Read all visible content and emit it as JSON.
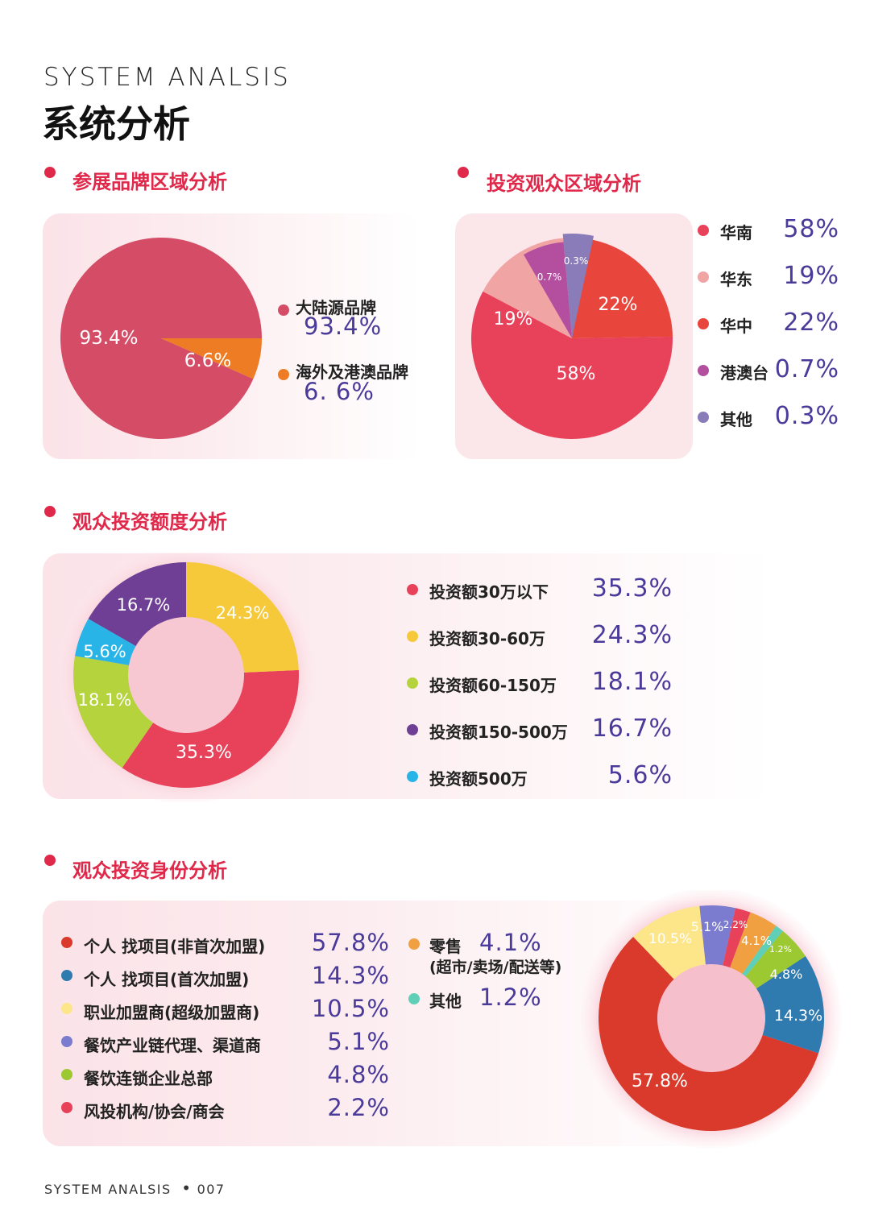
{
  "header": {
    "eng_title": "SYSTEM ANALSIS",
    "cn_title": "系统分析"
  },
  "footer": {
    "text": "SYSTEM ANALSIS",
    "page": "007"
  },
  "sections": {
    "brand": {
      "title": "参展品牌区域分析"
    },
    "region": {
      "title": "投资观众区域分析"
    },
    "amount": {
      "title": "观众投资额度分析"
    },
    "identity": {
      "title": "观众投资身份分析"
    }
  },
  "chart_data": [
    {
      "id": "brand",
      "type": "pie",
      "title": "参展品牌区域分析",
      "categories": [
        "大陆源品牌",
        "海外及港澳品牌"
      ],
      "values": [
        93.4,
        6.6
      ],
      "slice_labels": [
        "93.4%",
        "6.6%"
      ],
      "legend_values": [
        "93.4%",
        "6. 6%"
      ],
      "colors": [
        "#d44c66",
        "#ee7c24"
      ]
    },
    {
      "id": "region",
      "type": "pie",
      "title": "投资观众区域分析",
      "categories": [
        "华南",
        "华东",
        "华中",
        "港澳台",
        "其他"
      ],
      "values": [
        58,
        19,
        22,
        0.7,
        0.3
      ],
      "slice_labels": [
        "58%",
        "19%",
        "22%",
        "0.7%",
        "0.3%"
      ],
      "legend_values": [
        "58%",
        "19%",
        "22%",
        "0.7%",
        "0.3%"
      ],
      "colors": [
        "#e8415a",
        "#f0a4a4",
        "#e8453c",
        "#b44fa0",
        "#8a7cb8"
      ]
    },
    {
      "id": "amount",
      "type": "pie",
      "title": "观众投资额度分析",
      "categories": [
        "投资额30万以下",
        "投资额30-60万",
        "投资额60-150万",
        "投资额150-500万",
        "投资额500万"
      ],
      "values": [
        35.3,
        24.3,
        18.1,
        16.7,
        5.6
      ],
      "slice_labels": [
        "35.3%",
        "24.3%",
        "18.1%",
        "16.7%",
        "5.6%"
      ],
      "legend_values": [
        "35.3%",
        "24.3%",
        "18.1%",
        "16.7%",
        "5.6%"
      ],
      "colors": [
        "#e8415a",
        "#f5c93a",
        "#b5d33c",
        "#6f3f96",
        "#29b4e8"
      ]
    },
    {
      "id": "identity",
      "type": "pie",
      "title": "观众投资身份分析",
      "categories": [
        "个人 找项目(非首次加盟)",
        "个人 找项目(首次加盟)",
        "职业加盟商(超级加盟商)",
        "餐饮产业链代理、渠道商",
        "餐饮连锁企业总部",
        "风投机构/协会/商会",
        "零售",
        "其他"
      ],
      "category_notes": [
        "",
        "",
        "",
        "",
        "",
        "",
        "(超市/卖场/配送等)",
        ""
      ],
      "values": [
        57.8,
        14.3,
        10.5,
        5.1,
        4.8,
        2.2,
        4.1,
        1.2
      ],
      "slice_labels": [
        "57.8%",
        "14.3%",
        "10.5%",
        "5.1%",
        "4.8%",
        "2.2%",
        "4.1%",
        "1.2%"
      ],
      "legend_values": [
        "57.8%",
        "14.3%",
        "10.5%",
        "5.1%",
        "4.8%",
        "2.2%",
        "4.1%",
        "1.2%"
      ],
      "colors": [
        "#d93a2b",
        "#2f7bb0",
        "#fde58a",
        "#7b7bd0",
        "#9cc832",
        "#e8415a",
        "#f0a040",
        "#5fcfb8"
      ]
    }
  ]
}
